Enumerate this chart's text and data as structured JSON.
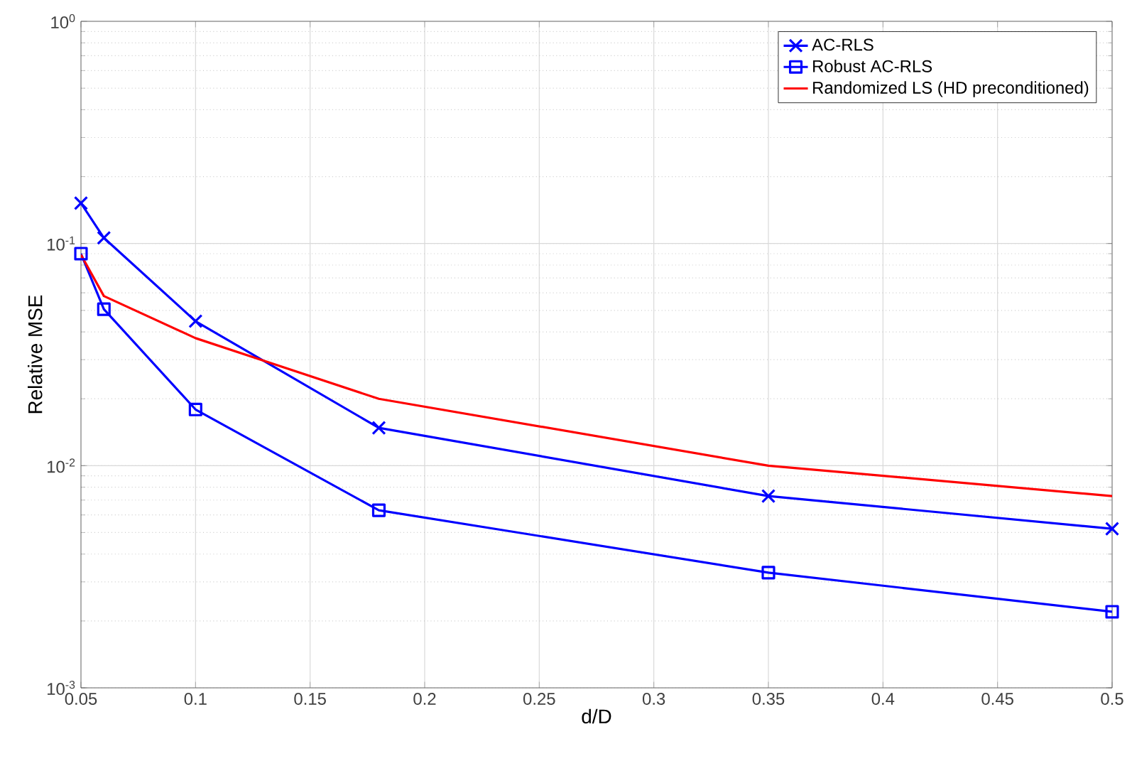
{
  "chart_data": {
    "type": "line",
    "xlabel": "d/D",
    "ylabel": "Relative MSE",
    "log": "y",
    "x": [
      0.05,
      0.06,
      0.1,
      0.18,
      0.35,
      0.5
    ],
    "series": [
      {
        "name": "AC-RLS",
        "color": "#0000ff",
        "marker": "cross",
        "values": [
          0.152,
          0.106,
          0.0447,
          0.0148,
          0.0073,
          0.0052
        ]
      },
      {
        "name": "Robust AC-RLS",
        "color": "#0000ff",
        "marker": "square",
        "values": [
          0.09,
          0.0506,
          0.0179,
          0.0063,
          0.0033,
          0.0022
        ]
      },
      {
        "name": "Randomized LS (HD preconditioned)",
        "color": "#ff0000",
        "marker": "none",
        "values": [
          0.089,
          0.058,
          0.0375,
          0.02,
          0.01,
          0.0073
        ]
      }
    ],
    "xlim": [
      0.05,
      0.5
    ],
    "ylim": [
      0.001,
      1
    ],
    "xticks": [
      0.05,
      0.1,
      0.15,
      0.2,
      0.25,
      0.3,
      0.35,
      0.4,
      0.45,
      0.5
    ],
    "yticks": [
      {
        "value": 0.001,
        "label": "10$^{-3}$"
      },
      {
        "value": 0.01,
        "label": "10$^{-2}$"
      },
      {
        "value": 0.1,
        "label": "10$^{-1}$"
      },
      {
        "value": 1,
        "label": "10$^{0}$"
      }
    ],
    "grid": true,
    "legend": "top right",
    "line_style": "solid"
  }
}
